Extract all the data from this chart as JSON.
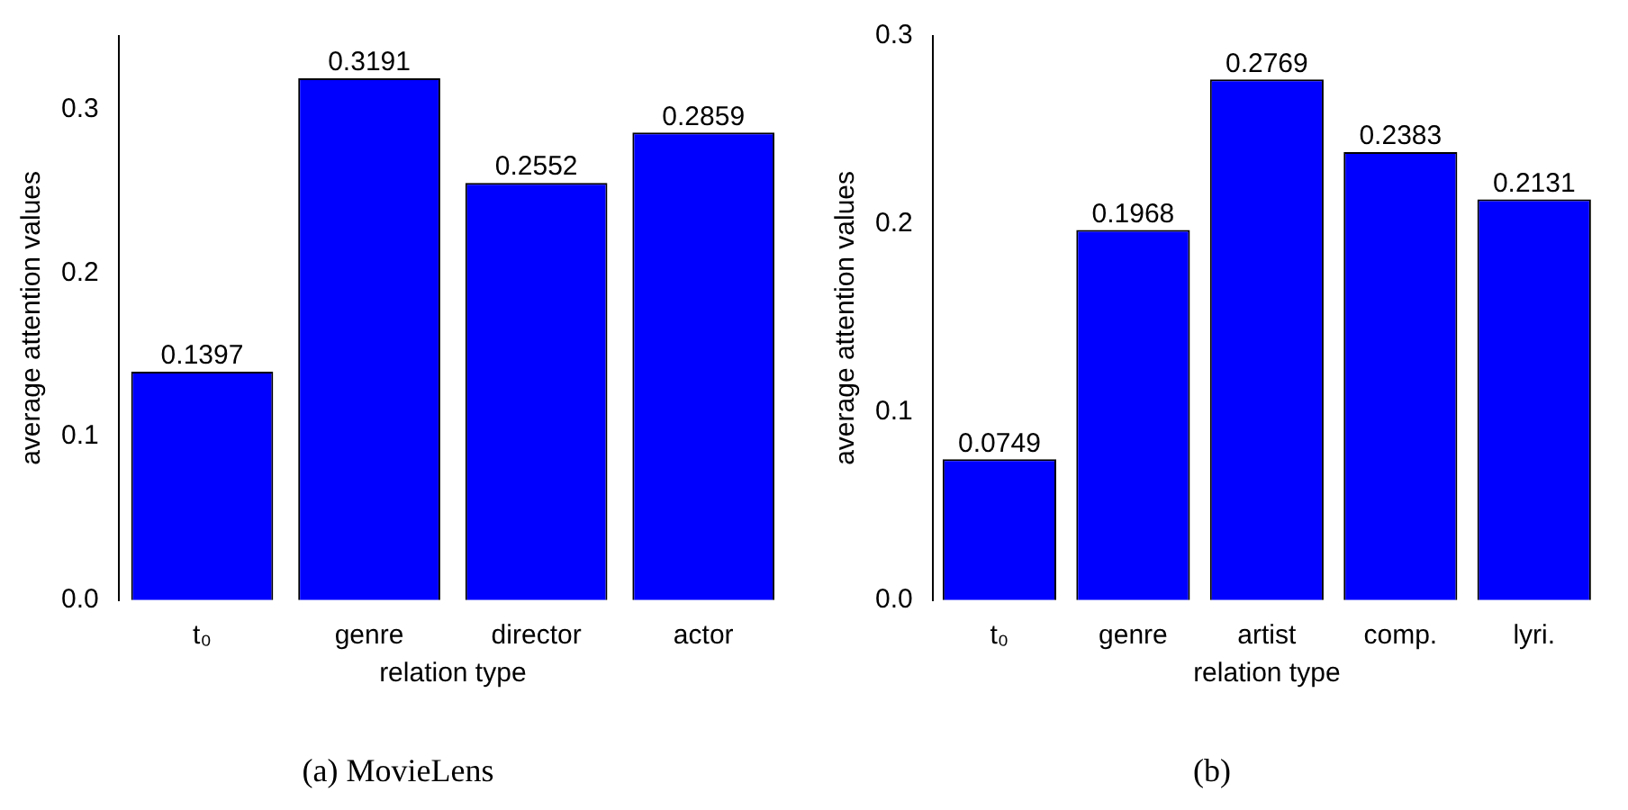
{
  "chart_data": [
    {
      "type": "bar",
      "title": "(a) MovieLens",
      "xlabel": "relation type",
      "ylabel": "average attention values",
      "categories": [
        "t₀",
        "genre",
        "director",
        "actor"
      ],
      "values": [
        0.1397,
        0.3191,
        0.2552,
        0.2859
      ],
      "color": "#0000ff",
      "ylim": [
        0,
        0.345
      ],
      "yticks": [
        {
          "value": 0,
          "label": "0.0"
        },
        0.1,
        0.2,
        0.3
      ],
      "data_labels": true,
      "grid": false,
      "legend": false
    },
    {
      "type": "bar",
      "title": "(b)",
      "xlabel": "relation type",
      "ylabel": "average attention values",
      "categories": [
        "t₀",
        "genre",
        "artist",
        "comp.",
        "lyri."
      ],
      "values": [
        0.0749,
        0.1968,
        0.2769,
        0.2383,
        0.2131
      ],
      "color": "#0000ff",
      "ylim": [
        0,
        0.3
      ],
      "yticks": [
        {
          "value": 0,
          "label": "0.0"
        },
        0.1,
        0.2,
        0.3
      ],
      "data_labels": true,
      "grid": false,
      "legend": false
    }
  ]
}
